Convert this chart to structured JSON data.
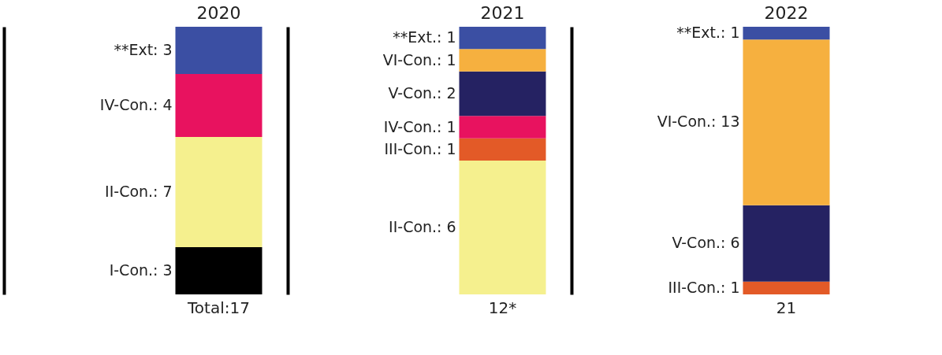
{
  "chart_data": [
    {
      "type": "bar",
      "stacked": true,
      "categories": [
        "2020"
      ],
      "tick_labels": "x",
      "data_labels": true,
      "totals": [
        "Total:17"
      ],
      "series": [
        {
          "name": "I-Con.:",
          "color": "#000000",
          "values": [
            3
          ]
        },
        {
          "name": "II-Con.:",
          "color": "#f5f08e",
          "values": [
            7
          ]
        },
        {
          "name": "IV-Con.:",
          "color": "#e8125f",
          "values": [
            4
          ]
        },
        {
          "name": "**Ext:",
          "color": "#3b4fa3",
          "values": [
            3
          ]
        }
      ]
    },
    {
      "type": "bar",
      "stacked": true,
      "categories": [
        "2021"
      ],
      "tick_labels": "x",
      "data_labels": true,
      "totals": [
        "12*"
      ],
      "series": [
        {
          "name": "II-Con.:",
          "color": "#f5f08e",
          "values": [
            6
          ]
        },
        {
          "name": "III-Con.:",
          "color": "#e35a27",
          "values": [
            1
          ]
        },
        {
          "name": "IV-Con.:",
          "color": "#e8125f",
          "values": [
            1
          ]
        },
        {
          "name": "V-Con.:",
          "color": "#252262",
          "values": [
            2
          ]
        },
        {
          "name": "VI-Con.:",
          "color": "#f6b03f",
          "values": [
            1
          ]
        },
        {
          "name": "**Ext.:",
          "color": "#3b4fa3",
          "values": [
            1
          ]
        }
      ]
    },
    {
      "type": "bar",
      "stacked": true,
      "categories": [
        "2022"
      ],
      "tick_labels": "x",
      "data_labels": true,
      "totals": [
        "21"
      ],
      "series": [
        {
          "name": "III-Con.:",
          "color": "#e35a27",
          "values": [
            1
          ]
        },
        {
          "name": "V-Con.:",
          "color": "#252262",
          "values": [
            6
          ]
        },
        {
          "name": "VI-Con.:",
          "color": "#f6b03f",
          "values": [
            13
          ]
        },
        {
          "name": "**Ext.:",
          "color": "#3b4fa3",
          "values": [
            1
          ]
        }
      ]
    }
  ]
}
